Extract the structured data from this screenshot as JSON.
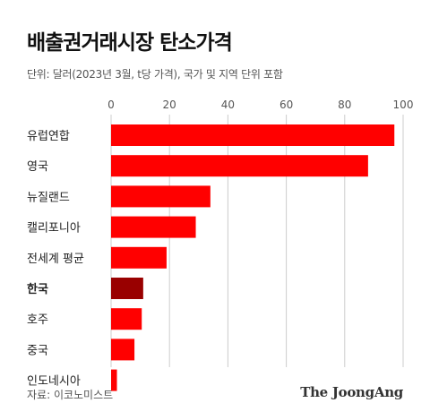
{
  "header": {
    "title": "배출권거래시장 탄소가격",
    "subtitle": "단위: 달러(2023년 3월, t당 가격), 국가 및 지역 단위 포함"
  },
  "footer": {
    "source": "자료: 이코노미스트",
    "brand": "The JoongAng"
  },
  "colors": {
    "bar": "#ff0000",
    "highlight": "#990000",
    "grid": "#cccccc"
  },
  "chart_data": {
    "type": "bar",
    "orientation": "horizontal",
    "categories": [
      "유럽연합",
      "영국",
      "뉴질랜드",
      "캘리포니아",
      "전세계 평균",
      "한국",
      "호주",
      "중국",
      "인도네시아"
    ],
    "values": [
      97,
      88,
      34,
      29,
      19,
      11,
      10.5,
      8,
      2
    ],
    "highlight_category": "한국",
    "xlim": [
      0,
      100
    ],
    "xticks": [
      0,
      20,
      40,
      60,
      80,
      100
    ],
    "grid": true
  }
}
